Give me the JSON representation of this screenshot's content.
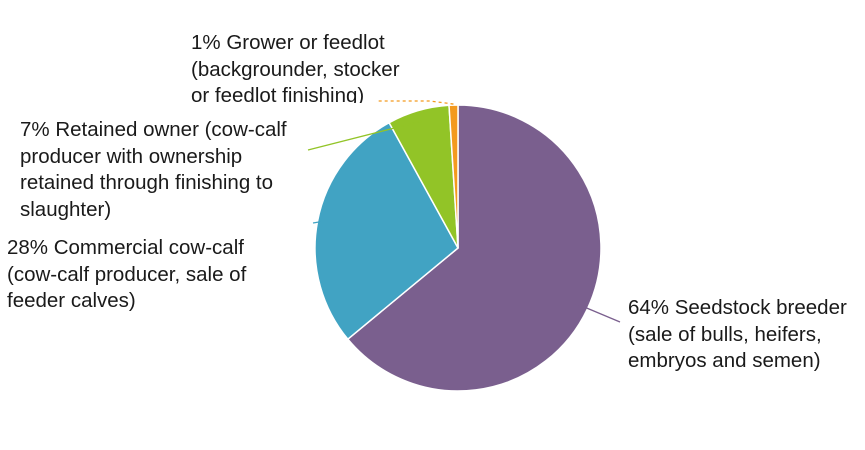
{
  "chart_data": {
    "type": "pie",
    "title": "",
    "start_angle_deg": 0,
    "direction": "clockwise",
    "slices": [
      {
        "value": 64,
        "color": "#7a5f8e",
        "label_lines": [
          "64% Seedstock breeder",
          "(sale of bulls, heifers,",
          "embryos and semen)"
        ]
      },
      {
        "value": 28,
        "color": "#41a3c3",
        "label_lines": [
          "28% Commercial cow-calf",
          "(cow-calf producer, sale of",
          "feeder calves)"
        ]
      },
      {
        "value": 7,
        "color": "#92c427",
        "label_lines": [
          "7% Retained owner (cow-calf",
          "producer with ownership",
          "retained through finishing to",
          "slaughter)"
        ]
      },
      {
        "value": 1,
        "color": "#f39a1f",
        "label_lines": [
          "1% Grower or feedlot",
          "(backgrounder, stocker",
          "or feedlot finishing)"
        ]
      }
    ]
  }
}
